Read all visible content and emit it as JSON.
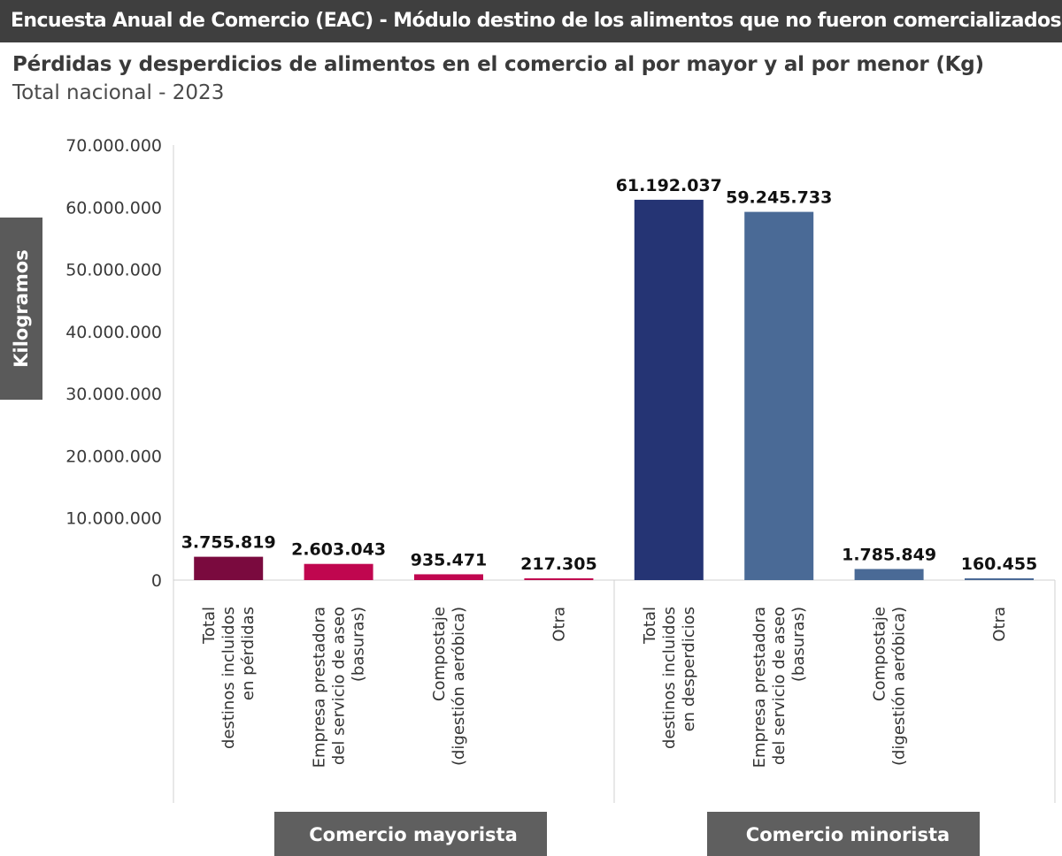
{
  "header": {
    "title": "Encuesta Anual de Comercio (EAC) - Módulo destino de los alimentos que no fueron comercializados"
  },
  "chart_data": {
    "type": "bar",
    "title": "Pérdidas y desperdicios de alimentos en el comercio al por mayor y al por menor (Kg)",
    "subtitle": "Total nacional - 2023",
    "ylabel": "Kilogramos",
    "ylim": [
      0,
      70000000
    ],
    "yticks": [
      0,
      10000000,
      20000000,
      30000000,
      40000000,
      50000000,
      60000000,
      70000000
    ],
    "ytick_labels": [
      "0",
      "10.000.000",
      "20.000.000",
      "30.000.000",
      "40.000.000",
      "50.000.000",
      "60.000.000",
      "70.000.000"
    ],
    "grid": false,
    "groups": [
      {
        "name": "Comercio mayorista",
        "bars": [
          {
            "label_lines": [
              "Total",
              "destinos incluidos",
              "en pérdidas"
            ],
            "value": 3755819,
            "value_label": "3.755.819",
            "color": "#7a0a3e"
          },
          {
            "label_lines": [
              "Empresa prestadora",
              "del servicio de aseo",
              "(basuras)"
            ],
            "value": 2603043,
            "value_label": "2.603.043",
            "color": "#c0064f"
          },
          {
            "label_lines": [
              "Compostaje",
              "(digestión aeróbica)"
            ],
            "value": 935471,
            "value_label": "935.471",
            "color": "#c0064f"
          },
          {
            "label_lines": [
              "Otra"
            ],
            "value": 217305,
            "value_label": "217.305",
            "color": "#c0064f"
          }
        ]
      },
      {
        "name": "Comercio minorista",
        "bars": [
          {
            "label_lines": [
              "Total",
              "destinos incluidos",
              "en desperdicios"
            ],
            "value": 61192037,
            "value_label": "61.192.037",
            "color": "#253474"
          },
          {
            "label_lines": [
              "Empresa prestadora",
              "del servicio de aseo",
              "(basuras)"
            ],
            "value": 59245733,
            "value_label": "59.245.733",
            "color": "#4a6a96"
          },
          {
            "label_lines": [
              "Compostaje",
              "(digestión aeróbica)"
            ],
            "value": 1785849,
            "value_label": "1.785.849",
            "color": "#4a6a96"
          },
          {
            "label_lines": [
              "Otra"
            ],
            "value": 160455,
            "value_label": "160.455",
            "color": "#4a6a96"
          }
        ]
      }
    ]
  }
}
